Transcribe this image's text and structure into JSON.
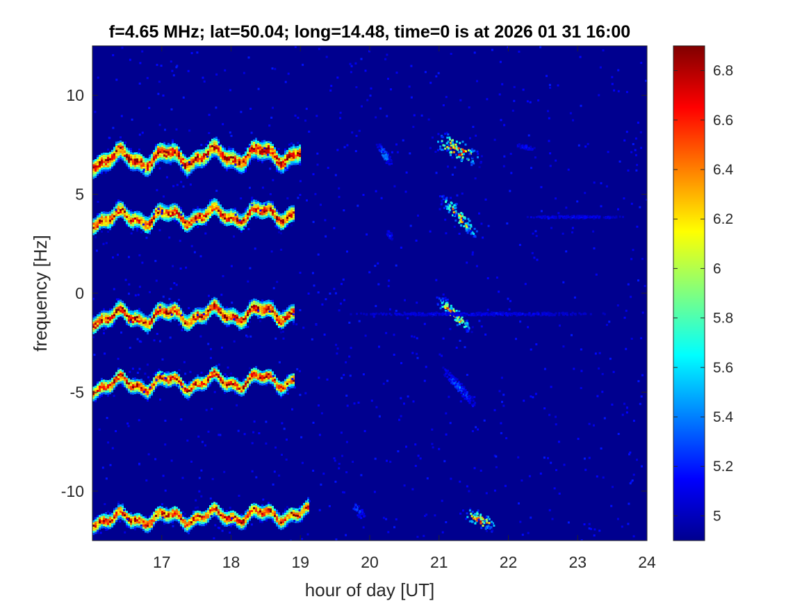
{
  "chart_data": {
    "type": "heatmap",
    "title": "f=4.65 MHz;  lat=50.04; long=14.48, time=0 is at 2026 01 31 16:00",
    "xlabel": "hour of day [UT]",
    "ylabel": "frequency [Hz]",
    "xlim": [
      16.0,
      24.0
    ],
    "ylim": [
      -12.5,
      12.5
    ],
    "xticks": [
      17,
      18,
      19,
      20,
      21,
      22,
      23,
      24
    ],
    "xtick_labels": [
      "17",
      "18",
      "19",
      "20",
      "21",
      "22",
      "23",
      "24"
    ],
    "yticks": [
      10,
      5,
      0,
      -5,
      -10
    ],
    "ytick_labels": [
      "10",
      "5",
      "0",
      "-5",
      "-10"
    ],
    "colorbar": {
      "colormap": "jet",
      "clim": [
        4.9,
        6.9
      ],
      "ticks": [
        6.8,
        6.6,
        6.4,
        6.2,
        6.0,
        5.8,
        5.6,
        5.4,
        5.2,
        5.0
      ],
      "tick_labels": [
        "6.8",
        "6.6",
        "6.4",
        "6.2",
        "6",
        "5.8",
        "5.6",
        "5.4",
        "5.2",
        "5"
      ],
      "location": "right"
    },
    "background_value": 4.95,
    "traces": [
      {
        "x_start": 16.0,
        "x_end": 19.0,
        "y_center": 6.9,
        "amplitude": 0.35,
        "width": 0.45,
        "peak": 6.9
      },
      {
        "x_start": 16.0,
        "x_end": 18.9,
        "y_center": 3.9,
        "amplitude": 0.3,
        "width": 0.4,
        "peak": 6.85
      },
      {
        "x_start": 16.0,
        "x_end": 18.9,
        "y_center": -1.1,
        "amplitude": 0.3,
        "width": 0.4,
        "peak": 6.9
      },
      {
        "x_start": 16.0,
        "x_end": 18.9,
        "y_center": -4.5,
        "amplitude": 0.3,
        "width": 0.35,
        "peak": 6.85
      },
      {
        "x_start": 16.0,
        "x_end": 19.1,
        "y_center": -11.3,
        "amplitude": 0.25,
        "width": 0.35,
        "peak": 6.85
      }
    ],
    "features": [
      {
        "x": [
          20.1,
          20.3
        ],
        "y": [
          7.6,
          6.5
        ],
        "width": 0.25,
        "peak": 5.6
      },
      {
        "x": [
          20.95,
          21.55
        ],
        "y": [
          7.9,
          6.7
        ],
        "width": 0.55,
        "peak": 6.9
      },
      {
        "x": [
          21.0,
          21.55
        ],
        "y": [
          5.0,
          2.9
        ],
        "width": 0.35,
        "peak": 6.7
      },
      {
        "x": [
          20.25,
          20.3
        ],
        "y": [
          3.2,
          2.8
        ],
        "width": 0.2,
        "peak": 5.3
      },
      {
        "x": [
          20.95,
          21.45
        ],
        "y": [
          -0.2,
          -1.8
        ],
        "width": 0.35,
        "peak": 6.8
      },
      {
        "x": [
          21.0,
          21.55
        ],
        "y": [
          -3.6,
          -5.8
        ],
        "width": 0.25,
        "peak": 5.5
      },
      {
        "x": [
          19.75,
          19.9
        ],
        "y": [
          -10.6,
          -11.3
        ],
        "width": 0.25,
        "peak": 5.6
      },
      {
        "x": [
          21.35,
          21.8
        ],
        "y": [
          -11.0,
          -11.8
        ],
        "width": 0.4,
        "peak": 6.85
      },
      {
        "x": [
          22.05,
          22.4
        ],
        "y": [
          7.6,
          7.3
        ],
        "width": 0.15,
        "peak": 5.3
      },
      {
        "x": [
          22.0,
          24.0
        ],
        "y": [
          3.9,
          3.9
        ],
        "width": 0.1,
        "peak": 5.2
      },
      {
        "x": [
          19.0,
          24.0
        ],
        "y": [
          -1.0,
          -1.0
        ],
        "width": 0.12,
        "peak": 5.2
      }
    ]
  }
}
